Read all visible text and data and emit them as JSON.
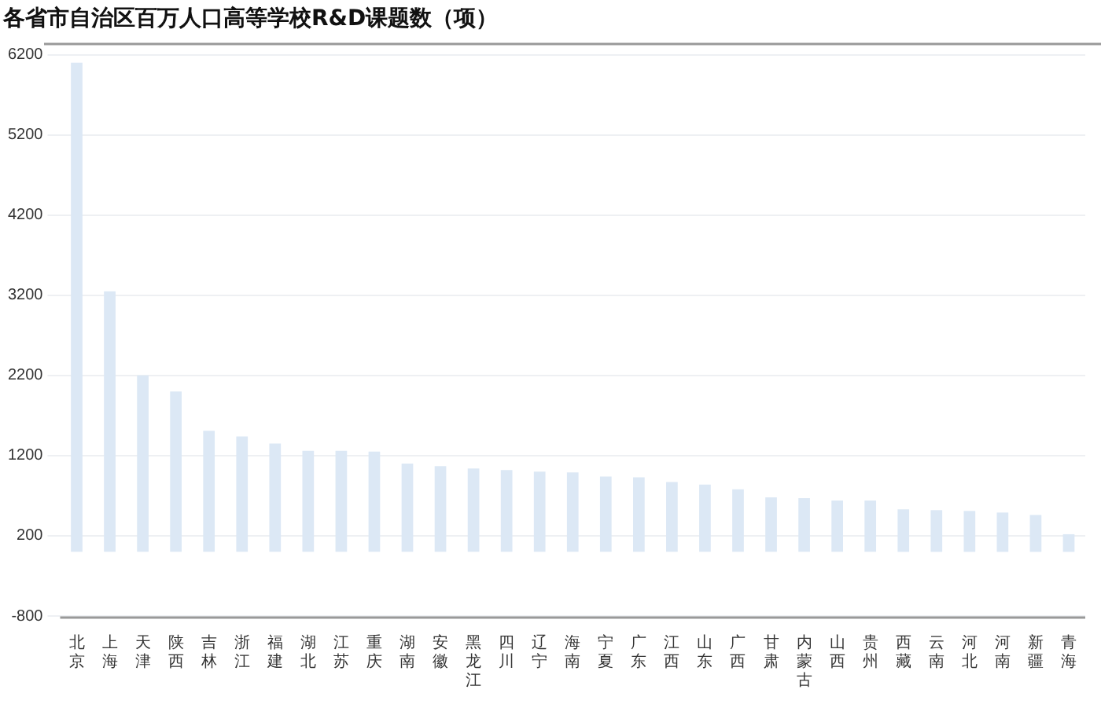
{
  "chart_data": {
    "type": "bar",
    "title": "各省市自治区百万人口高等学校R&D课题数（项）",
    "categories": [
      "北京",
      "上海",
      "天津",
      "陕西",
      "吉林",
      "浙江",
      "福建",
      "湖北",
      "江苏",
      "重庆",
      "湖南",
      "安徽",
      "黑龙江",
      "四川",
      "辽宁",
      "海南",
      "宁夏",
      "广东",
      "江西",
      "山东",
      "广西",
      "甘肃",
      "内蒙古",
      "山西",
      "贵州",
      "西藏",
      "云南",
      "河北",
      "河南",
      "新疆",
      "青海"
    ],
    "values": [
      6100,
      3250,
      2200,
      2000,
      1510,
      1440,
      1350,
      1260,
      1260,
      1250,
      1100,
      1070,
      1040,
      1020,
      1000,
      990,
      940,
      930,
      870,
      840,
      780,
      680,
      670,
      640,
      640,
      530,
      520,
      510,
      490,
      460,
      220
    ],
    "color": "#dce8f5",
    "ylim": [
      -800,
      6200
    ],
    "yticks": [
      -800,
      200,
      1200,
      2200,
      3200,
      4200,
      5200,
      6200
    ],
    "grid": "y",
    "legend": false
  }
}
